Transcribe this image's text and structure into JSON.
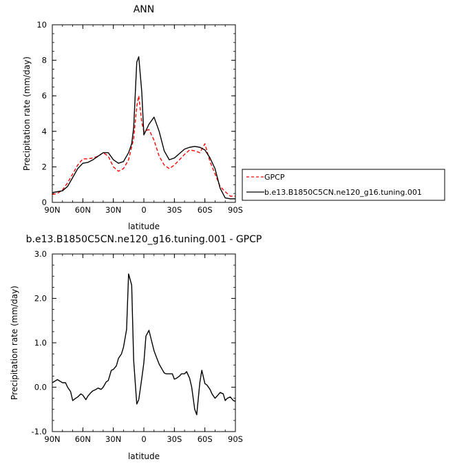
{
  "chart_data": [
    {
      "type": "line",
      "title": "ANN",
      "xlabel": "latitude",
      "ylabel": "Precipitation rate  (mm/day)",
      "xlim": [
        90,
        -90
      ],
      "ylim": [
        0,
        10
      ],
      "xticks": [
        90,
        60,
        30,
        0,
        -30,
        -60,
        -90
      ],
      "xtick_labels": [
        "90N",
        "60N",
        "30N",
        "0",
        "30S",
        "60S",
        "90S"
      ],
      "yticks": [
        0,
        2,
        4,
        6,
        8,
        10
      ],
      "ytick_labels": [
        "0",
        "2",
        "4",
        "6",
        "8",
        "10"
      ],
      "legend_position": "right",
      "series": [
        {
          "name": "GPCP",
          "color": "#ff0000",
          "dash": "dashed",
          "x": [
            90,
            85,
            80,
            75,
            70,
            65,
            60,
            55,
            50,
            45,
            40,
            35,
            30,
            25,
            20,
            15,
            10,
            7,
            5,
            2,
            0,
            -5,
            -10,
            -15,
            -20,
            -25,
            -30,
            -35,
            -40,
            -45,
            -50,
            -55,
            -60,
            -65,
            -70,
            -75,
            -80,
            -85,
            -90
          ],
          "y": [
            0.45,
            0.5,
            0.7,
            1.1,
            1.6,
            2.1,
            2.45,
            2.45,
            2.5,
            2.6,
            2.8,
            2.6,
            2.0,
            1.75,
            1.9,
            2.4,
            3.6,
            5.4,
            6.0,
            4.5,
            4.0,
            4.1,
            3.5,
            2.6,
            2.1,
            1.9,
            2.1,
            2.4,
            2.7,
            2.95,
            2.9,
            2.8,
            3.3,
            2.3,
            1.6,
            0.9,
            0.6,
            0.35,
            0.35
          ]
        },
        {
          "name": "b.e13.B1850C5CN.ne120_g16.tuning.001",
          "color": "#000000",
          "dash": "solid",
          "x": [
            90,
            85,
            80,
            75,
            70,
            65,
            60,
            55,
            50,
            45,
            40,
            35,
            30,
            25,
            20,
            15,
            12,
            10,
            7,
            5,
            2,
            0,
            -5,
            -10,
            -15,
            -20,
            -25,
            -30,
            -35,
            -40,
            -45,
            -50,
            -55,
            -60,
            -65,
            -70,
            -75,
            -80,
            -85,
            -90
          ],
          "y": [
            0.55,
            0.6,
            0.65,
            0.9,
            1.4,
            1.9,
            2.2,
            2.25,
            2.4,
            2.6,
            2.8,
            2.8,
            2.4,
            2.2,
            2.3,
            2.8,
            3.3,
            4.2,
            7.9,
            8.2,
            6.2,
            3.8,
            4.4,
            4.8,
            4.0,
            2.9,
            2.4,
            2.5,
            2.75,
            3.0,
            3.1,
            3.15,
            3.1,
            2.95,
            2.5,
            1.9,
            0.8,
            0.25,
            0.2,
            0.2
          ]
        }
      ]
    },
    {
      "type": "line",
      "title": "b.e13.B1850C5CN.ne120_g16.tuning.001  -  GPCP",
      "xlabel": "latitude",
      "ylabel": "Precipitation rate  (mm/day)",
      "xlim": [
        90,
        -90
      ],
      "ylim": [
        -1,
        3
      ],
      "xticks": [
        90,
        60,
        30,
        0,
        -30,
        -60,
        -90
      ],
      "xtick_labels": [
        "90N",
        "60N",
        "30N",
        "0",
        "30S",
        "60S",
        "90S"
      ],
      "yticks": [
        -1,
        0,
        1,
        2,
        3
      ],
      "ytick_labels": [
        "-1.0",
        "0.0",
        "1.0",
        "2.0",
        "3.0"
      ],
      "series": [
        {
          "color": "#000000",
          "dash": "solid",
          "x": [
            90,
            85,
            80,
            77,
            75,
            72,
            70,
            67,
            65,
            62,
            60,
            57,
            55,
            52,
            50,
            47,
            45,
            42,
            40,
            37,
            35,
            32,
            30,
            27,
            25,
            22,
            20,
            17,
            15,
            12,
            10,
            7,
            5,
            2,
            0,
            -2,
            -5,
            -7,
            -10,
            -12,
            -15,
            -18,
            -20,
            -22,
            -25,
            -28,
            -30,
            -32,
            -35,
            -37,
            -40,
            -42,
            -45,
            -47,
            -50,
            -52,
            -55,
            -57,
            -60,
            -62,
            -65,
            -67,
            -70,
            -72,
            -75,
            -78,
            -80,
            -82,
            -85,
            -88,
            -90
          ],
          "y": [
            0.1,
            0.17,
            0.1,
            0.1,
            0.0,
            -0.1,
            -0.3,
            -0.25,
            -0.22,
            -0.15,
            -0.18,
            -0.28,
            -0.2,
            -0.12,
            -0.08,
            -0.05,
            -0.02,
            -0.05,
            0.0,
            0.12,
            0.15,
            0.38,
            0.4,
            0.48,
            0.65,
            0.75,
            0.9,
            1.3,
            2.55,
            2.3,
            0.6,
            -0.38,
            -0.28,
            0.2,
            0.55,
            1.15,
            1.28,
            1.1,
            0.82,
            0.7,
            0.52,
            0.4,
            0.32,
            0.3,
            0.3,
            0.3,
            0.18,
            0.2,
            0.25,
            0.3,
            0.3,
            0.35,
            0.2,
            0.0,
            -0.5,
            -0.62,
            0.1,
            0.38,
            0.08,
            0.05,
            -0.05,
            -0.15,
            -0.25,
            -0.2,
            -0.12,
            -0.15,
            -0.3,
            -0.25,
            -0.22,
            -0.3,
            -0.32
          ]
        }
      ]
    }
  ]
}
